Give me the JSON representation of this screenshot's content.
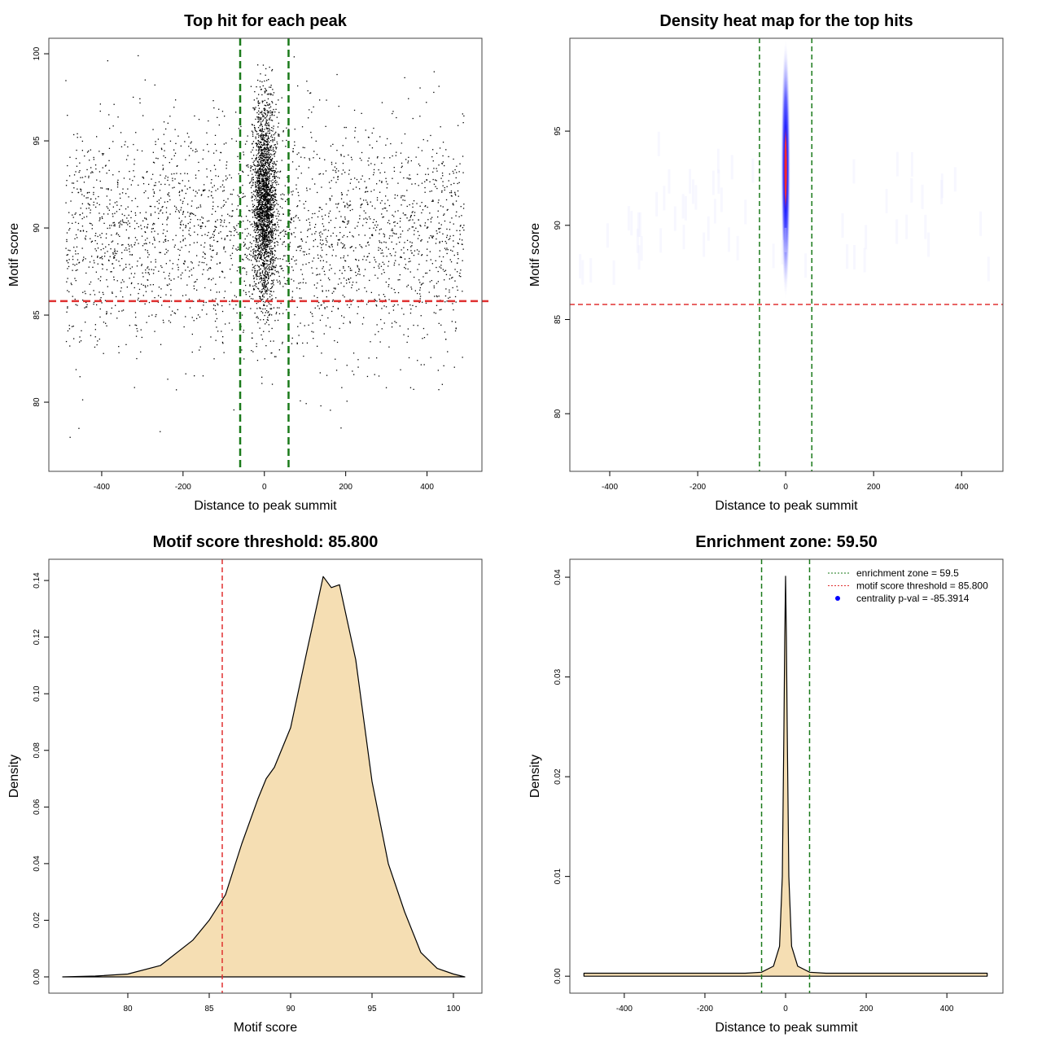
{
  "colors": {
    "threshold": "#e03030",
    "zone": "#1a7a1a",
    "fill": "#f5deb3",
    "point": "#000000",
    "centrality": "#0000ff"
  },
  "chart_data": [
    {
      "type": "scatter",
      "title": "Top hit for each peak",
      "xlabel": "Distance to peak summit",
      "ylabel": "Motif score",
      "xlim": [
        -530,
        535
      ],
      "ylim": [
        76.03,
        100.89
      ],
      "xticks": [
        -400,
        -200,
        0,
        200,
        400
      ],
      "yticks": [
        80,
        85,
        90,
        95,
        100
      ],
      "threshold": 85.8,
      "zone": [
        -59.5,
        59.5
      ],
      "n_points_drawn": 5000,
      "background": {
        "x_range": [
          -490,
          490
        ],
        "score_mean": 89.5,
        "score_sd": 3.3
      },
      "central": {
        "x_sd": 14,
        "score_mean": 91.5,
        "score_sd": 2.8
      }
    },
    {
      "type": "heatmap",
      "title": "Density heat map for the top hits",
      "xlabel": "Distance to peak summit",
      "ylabel": "Motif score",
      "xlim": [
        -490.7,
        494
      ],
      "ylim": [
        76.94,
        99.93
      ],
      "xticks": [
        -400,
        -200,
        0,
        200,
        400
      ],
      "yticks": [
        80,
        85,
        90,
        95
      ],
      "threshold": 85.8,
      "zone": [
        -59.5,
        59.5
      ],
      "hotspot": {
        "x": 0,
        "y": 93,
        "x_spread": 10,
        "y_spread": 7
      }
    },
    {
      "type": "area",
      "title": "Motif score threshold: 85.800",
      "xlabel": "Motif score",
      "ylabel": "Density",
      "xlim": [
        75.15,
        101.75
      ],
      "ylim": [
        -0.00575,
        0.1475
      ],
      "xticks": [
        80,
        85,
        90,
        95,
        100
      ],
      "yticks": [
        0,
        0.02,
        0.04,
        0.06,
        0.08,
        0.1,
        0.12,
        0.14
      ],
      "ytick_labels": [
        "0.00",
        "0.02",
        "0.04",
        "0.06",
        "0.08",
        "0.10",
        "0.12",
        "0.14"
      ],
      "threshold": 85.8,
      "x": [
        76,
        78,
        80,
        82,
        84,
        85,
        86,
        87,
        88,
        88.5,
        89,
        90,
        91,
        92,
        92.5,
        93,
        94,
        95,
        96,
        97,
        98,
        99,
        100,
        100.7
      ],
      "y": [
        0,
        0.0003,
        0.001,
        0.004,
        0.013,
        0.02,
        0.029,
        0.047,
        0.063,
        0.07,
        0.074,
        0.088,
        0.115,
        0.1414,
        0.1375,
        0.1385,
        0.112,
        0.069,
        0.04,
        0.023,
        0.0086,
        0.003,
        0.001,
        0
      ]
    },
    {
      "type": "area",
      "title": "Enrichment zone: 59.50",
      "xlabel": "Distance to peak summit",
      "ylabel": "Density",
      "xlim": [
        -535,
        539
      ],
      "ylim": [
        -0.0017,
        0.0418
      ],
      "xticks": [
        -400,
        -200,
        0,
        200,
        400
      ],
      "yticks": [
        0,
        0.01,
        0.02,
        0.03,
        0.04
      ],
      "ytick_labels": [
        "0.00",
        "0.01",
        "0.02",
        "0.03",
        "0.04"
      ],
      "zone": [
        -59.5,
        59.5
      ],
      "x": [
        -500,
        -400,
        -300,
        -200,
        -100,
        -60,
        -30,
        -15,
        -8,
        -4,
        -2,
        0,
        2,
        4,
        8,
        15,
        30,
        60,
        100,
        200,
        300,
        400,
        500
      ],
      "y": [
        0.0003,
        0.0003,
        0.0003,
        0.0003,
        0.0003,
        0.0004,
        0.001,
        0.003,
        0.01,
        0.025,
        0.034,
        0.0401,
        0.034,
        0.025,
        0.01,
        0.003,
        0.001,
        0.0004,
        0.0003,
        0.0003,
        0.0003,
        0.0003,
        0.0003
      ],
      "legend": {
        "position": "top-right",
        "items": [
          "enrichment zone = 59.5",
          "motif score threshold = 85.800",
          "centrality p-val = -85.3914"
        ]
      }
    }
  ]
}
